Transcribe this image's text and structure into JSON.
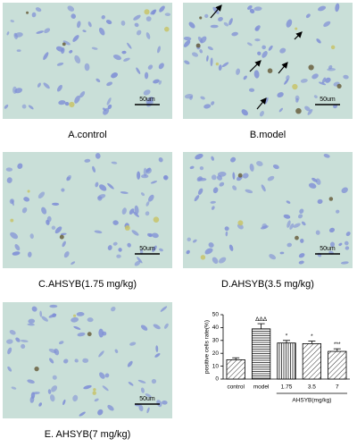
{
  "panels": [
    {
      "caption": "A.control",
      "scale_bar": "50um"
    },
    {
      "caption": "B.model",
      "scale_bar": "50um"
    },
    {
      "caption": "C.AHSYB(1.75 mg/kg)",
      "scale_bar": "50um"
    },
    {
      "caption": "D.AHSYB(3.5 mg/kg)",
      "scale_bar": "50um"
    },
    {
      "caption": "E. AHSYB(7 mg/kg)",
      "scale_bar": "50um"
    }
  ],
  "chart_data": {
    "type": "bar",
    "y_label": "positive cells rate(%)",
    "x_group_label": "AHSYB(mg/kg)",
    "categories": [
      "control",
      "model",
      "1.75",
      "3.5",
      "7"
    ],
    "values": [
      15,
      39,
      28,
      27.5,
      21.5
    ],
    "errors": [
      1.5,
      4,
      2,
      2,
      2
    ],
    "significance": [
      null,
      "ΔΔΔ",
      "*",
      "*",
      "***"
    ],
    "hatches": [
      "diagonal",
      "horizontal",
      "vertical",
      "diagonal",
      "diagonal"
    ],
    "color": "#000000",
    "ylim": [
      0,
      50
    ],
    "yticks": [
      0,
      10,
      20,
      30,
      40,
      50
    ]
  }
}
